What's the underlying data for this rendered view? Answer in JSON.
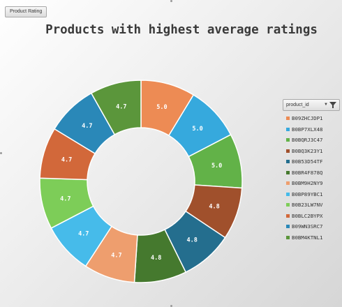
{
  "filter_button": {
    "label": "Product Rating"
  },
  "legend_header": {
    "label": "product_id"
  },
  "colors": {
    "background": "#e6e6e6",
    "title": "#3a3a3a",
    "slice_label": "#ffffff"
  },
  "chart_data": {
    "type": "pie",
    "variant": "donut",
    "title": "Products with highest average ratings",
    "legend_position": "right",
    "categories": [
      "B09ZHCJDP1",
      "B0BP7XLX48",
      "B0BQRJ3C47",
      "B0BQ3K23Y1",
      "B0B53D54TF",
      "B0BR4F878Q",
      "B0BM9H2NY9",
      "B0BP89YBC1",
      "B0B23LW7NV",
      "B0BLC2BYPX",
      "B09WN3SRC7",
      "B0BM4KTNL1"
    ],
    "values": [
      5.0,
      5.0,
      5.0,
      4.8,
      4.8,
      4.8,
      4.7,
      4.7,
      4.7,
      4.7,
      4.7,
      4.7
    ],
    "labels": [
      "5.0",
      "5.0",
      "5.0",
      "4.8",
      "4.8",
      "4.8",
      "4.7",
      "4.7",
      "4.7",
      "4.7",
      "4.7",
      "4.7"
    ],
    "colors": [
      "#ed8b54",
      "#36a9dd",
      "#62b248",
      "#a0502c",
      "#246e8e",
      "#45792e",
      "#ee9e6e",
      "#46bbea",
      "#7dcd58",
      "#d2683a",
      "#2a88b8",
      "#5b963b"
    ]
  }
}
